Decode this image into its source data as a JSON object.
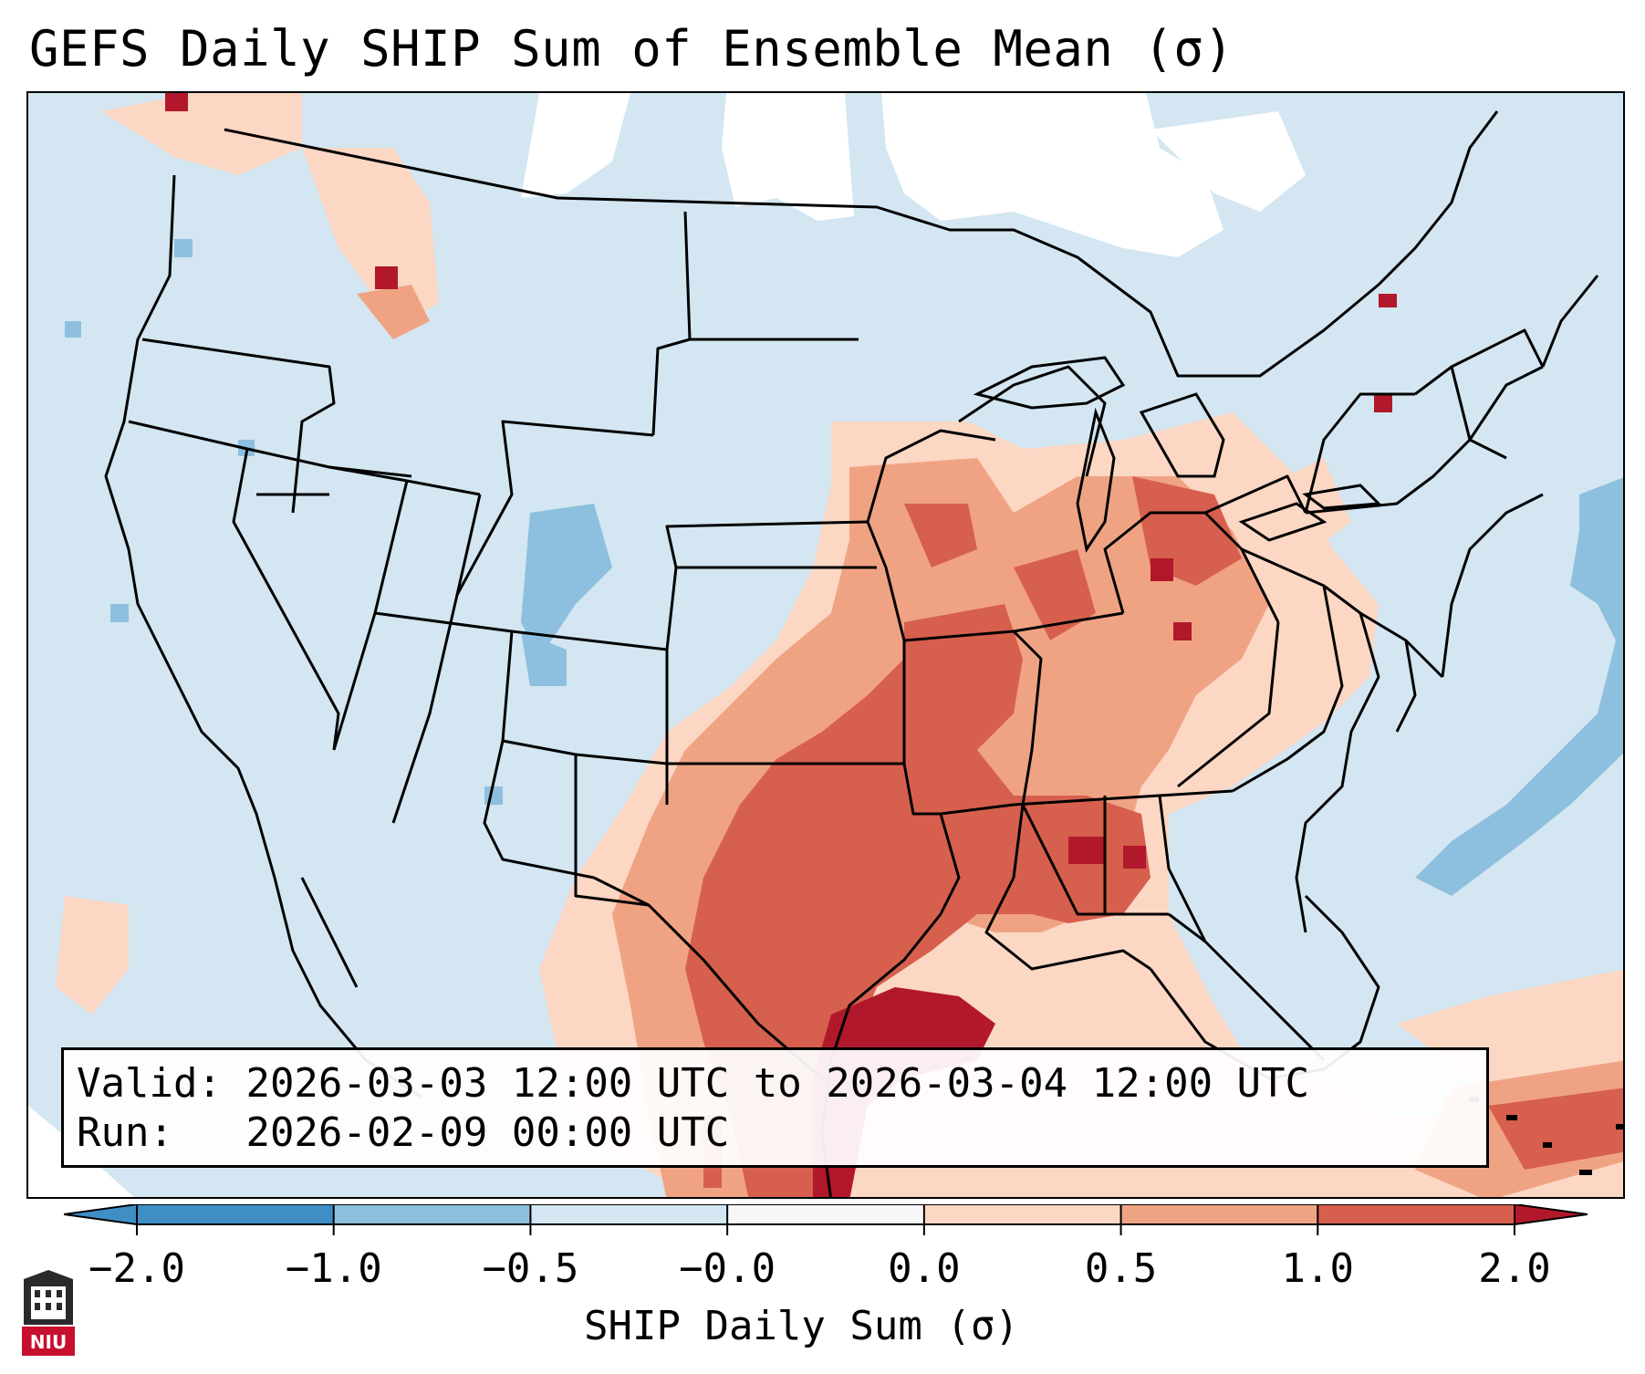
{
  "title": "GEFS Daily SHIP Sum of Ensemble Mean (σ)",
  "info": {
    "valid_label": "Valid:",
    "valid_value": "2026-03-03 12:00 UTC to 2026-03-04 12:00 UTC",
    "run_label": "Run:",
    "run_value": "2026-02-09 00:00 UTC"
  },
  "colorbar": {
    "label": "SHIP Daily Sum (σ)",
    "ticks": [
      "−2.0",
      "−1.0",
      "−0.5",
      "−0.0",
      "0.0",
      "0.5",
      "1.0",
      "2.0"
    ],
    "colors": [
      "#3f8fc6",
      "#8dc0de",
      "#d3e6f1",
      "#f7f7f7",
      "#fbd7c4",
      "#f0a383",
      "#d6604d",
      "#b2182b"
    ]
  },
  "logo_text": "NIU",
  "colors": {
    "neg_strong": "#8dc0de",
    "neg_weak": "#d3e6f1",
    "neutral": "#ffffff",
    "pos_weak": "#fbd7c4",
    "pos_mid": "#f0a383",
    "pos_high": "#d6604d",
    "pos_max": "#b2182b"
  }
}
